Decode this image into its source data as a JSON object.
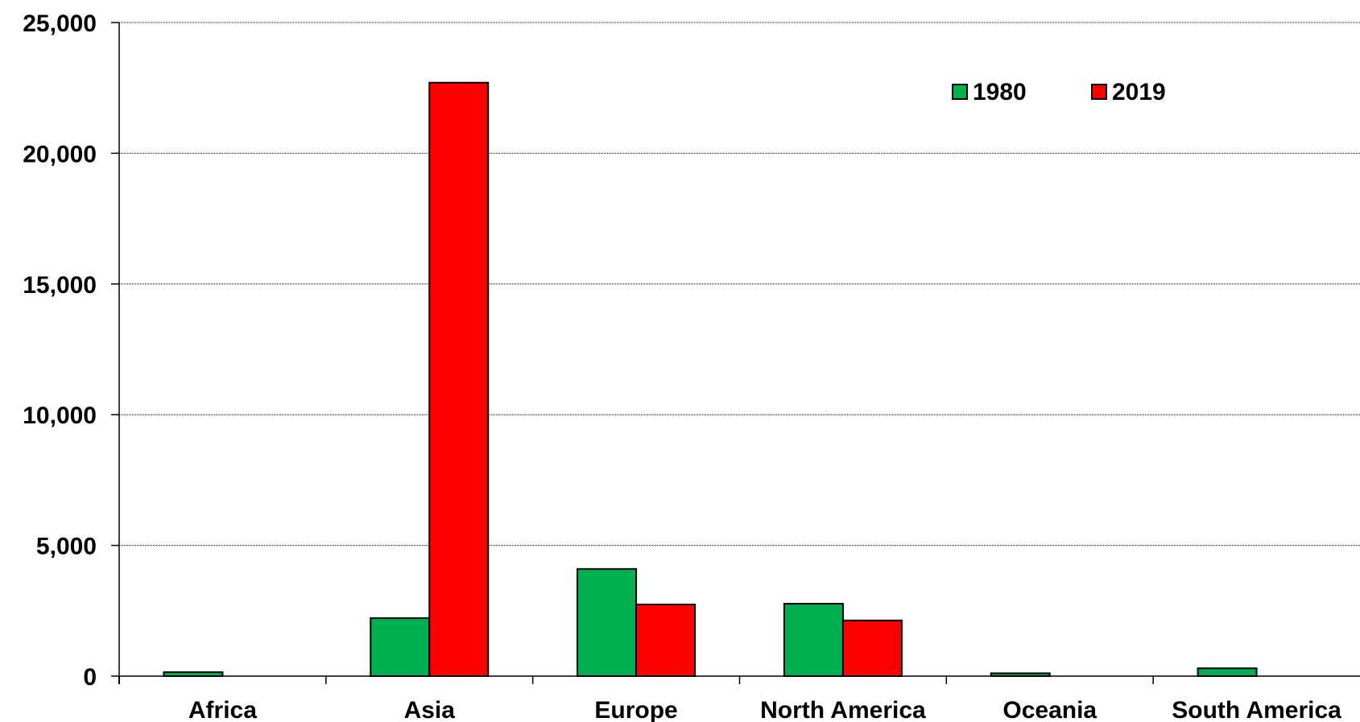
{
  "chart_data": {
    "type": "bar",
    "title": "",
    "xlabel": "",
    "ylabel": "",
    "categories": [
      "Africa",
      "Asia",
      "Europe",
      "North America",
      "Oceania",
      "South America"
    ],
    "series": [
      {
        "name": "1980",
        "color": "#00b050",
        "values": [
          150,
          2220,
          4100,
          2770,
          110,
          300
        ]
      },
      {
        "name": "2019",
        "color": "#ff0000",
        "values": [
          0,
          22700,
          2740,
          2130,
          0,
          0
        ]
      }
    ],
    "ylim": [
      0,
      25000
    ],
    "yticks": [
      0,
      5000,
      10000,
      15000,
      20000,
      25000
    ],
    "ytick_labels": [
      "0",
      "5,000",
      "10,000",
      "15,000",
      "20,000",
      "25,000"
    ],
    "grid": true,
    "legend_position": "top-right"
  }
}
